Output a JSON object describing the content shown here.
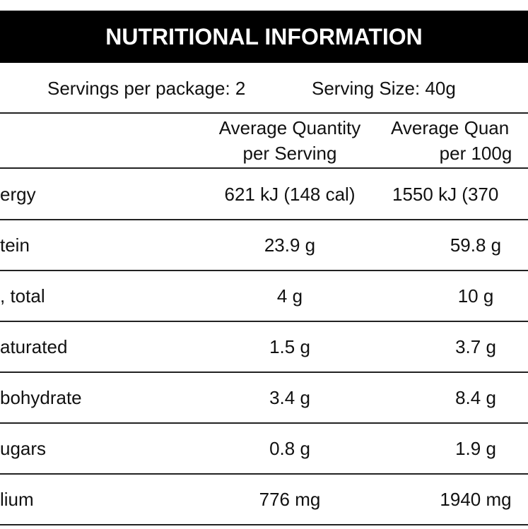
{
  "title": "NUTRITIONAL INFORMATION",
  "servings": {
    "per_package": "Servings per package: 2",
    "serving_size": "Serving Size: 40g"
  },
  "table": {
    "header": [
      [
        "Average Quantity",
        "per Serving"
      ],
      [
        "Average Quan",
        "per 100g"
      ]
    ],
    "rows": [
      [
        "ergy",
        "621 kJ (148 cal)",
        "1550 kJ (370"
      ],
      [
        "tein",
        "23.9 g",
        "59.8 g"
      ],
      [
        ", total",
        "4 g",
        "10 g"
      ],
      [
        "aturated",
        "1.5 g",
        "3.7 g"
      ],
      [
        "bohydrate",
        "3.4 g",
        "8.4 g"
      ],
      [
        "ugars",
        "0.8 g",
        "1.9 g"
      ],
      [
        "lium",
        "776 mg",
        "1940 mg"
      ]
    ]
  }
}
